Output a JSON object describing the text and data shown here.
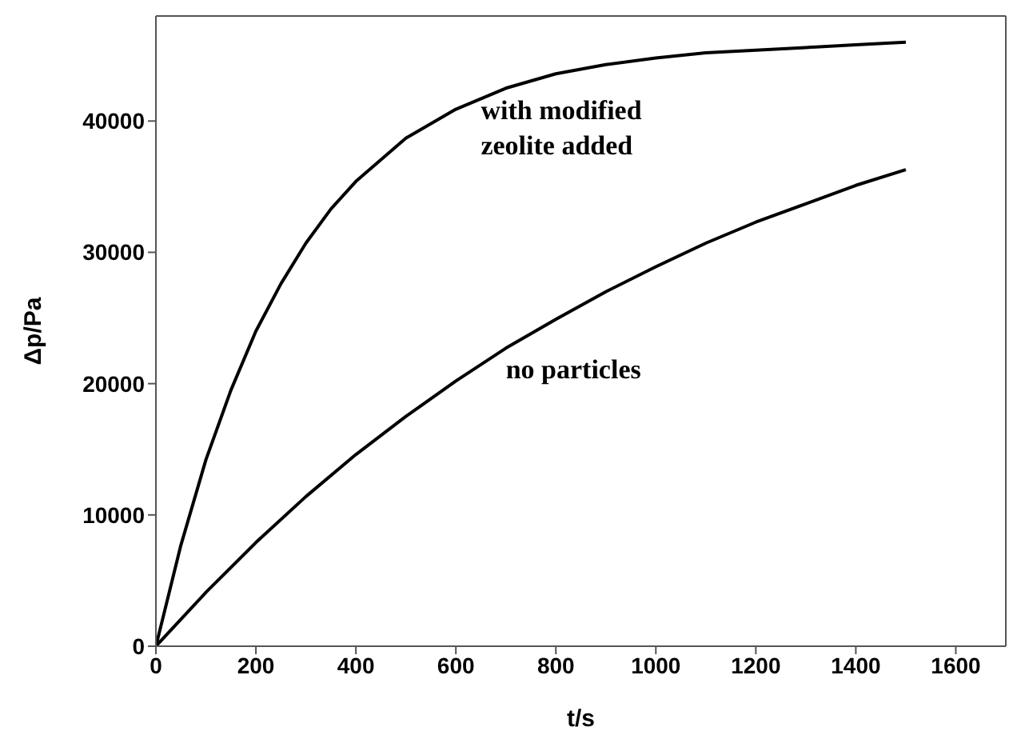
{
  "chart_data": {
    "type": "line",
    "xlabel": "t/s",
    "ylabel": "Δp/Pa",
    "xlim": [
      0,
      1700
    ],
    "xticks": [
      0,
      200,
      400,
      600,
      800,
      1000,
      1200,
      1400,
      1600
    ],
    "ylim": [
      0,
      48000
    ],
    "yticks": [
      0,
      10000,
      20000,
      30000,
      40000
    ],
    "marker": "none",
    "line_style": "solid",
    "series": [
      {
        "color": "#000000",
        "x": [
          0,
          50,
          100,
          150,
          200,
          250,
          300,
          350,
          400,
          500,
          600,
          700,
          800,
          900,
          1000,
          1100,
          1200,
          1300,
          1400,
          1500
        ],
        "values": [
          0,
          7700,
          14200,
          19500,
          24000,
          27600,
          30700,
          33300,
          35400,
          38700,
          40900,
          42500,
          43600,
          44300,
          44800,
          45200,
          45400,
          45600,
          45800,
          46000
        ]
      },
      {
        "color": "#000000",
        "x": [
          0,
          100,
          200,
          300,
          400,
          500,
          600,
          700,
          800,
          900,
          1000,
          1100,
          1200,
          1300,
          1400,
          1500
        ],
        "values": [
          0,
          4100,
          7900,
          11400,
          14600,
          17500,
          20200,
          22700,
          24900,
          27000,
          28900,
          30700,
          32300,
          33700,
          35100,
          36300
        ]
      }
    ],
    "annotations": [
      {
        "text": "with modified zeolite added",
        "x": 650,
        "y": 41600
      },
      {
        "text": "no particles",
        "x": 700,
        "y": 21900
      }
    ]
  }
}
